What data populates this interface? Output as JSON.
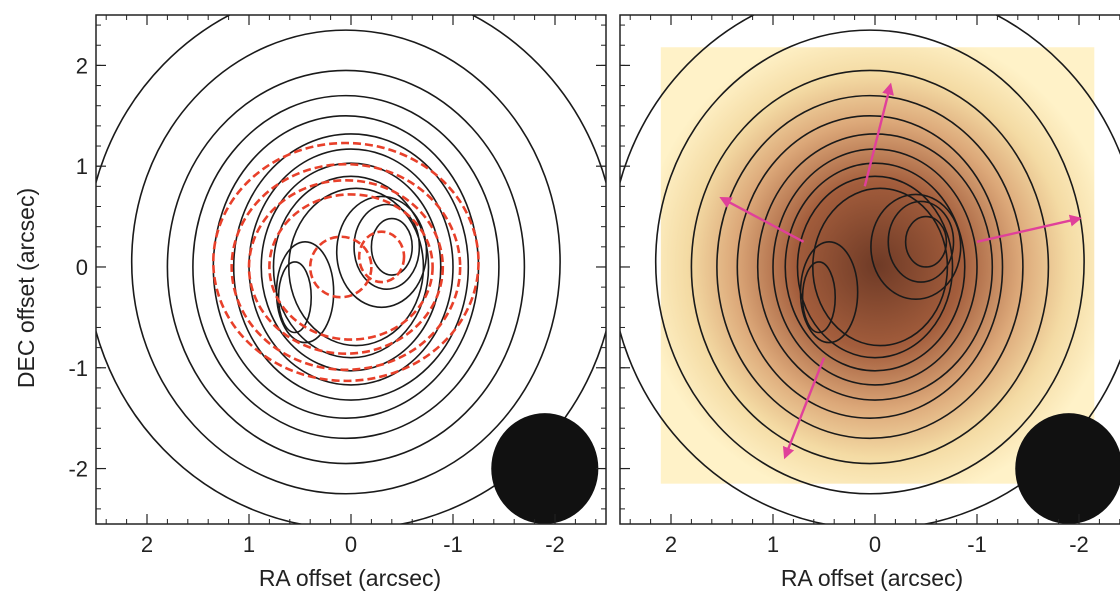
{
  "chart_data": [
    {
      "type": "contour",
      "panel": "left",
      "xlabel": "RA offset (arcsec)",
      "ylabel": "DEC offset (arcsec)",
      "xlim": [
        2.5,
        -2.5
      ],
      "ylim": [
        -2.55,
        2.5
      ],
      "x_ticks": [
        2,
        1,
        0,
        -1,
        -2
      ],
      "y_ticks": [
        2,
        1,
        0,
        -1,
        -2
      ],
      "x_tick_labels": [
        "2",
        "1",
        "0",
        "-1",
        "-2"
      ],
      "y_tick_labels": [
        "2",
        "1",
        "0",
        "-1",
        "-2"
      ],
      "series": [
        {
          "style": "solid",
          "color": "#1a1a1a",
          "contours": [
            {
              "cx": 0.0,
              "cy": 0.1,
              "rx": 2.6,
              "ry": 2.7
            },
            {
              "cx": 0.05,
              "cy": 0.05,
              "rx": 2.1,
              "ry": 2.3
            },
            {
              "cx": 0.05,
              "cy": 0.0,
              "rx": 1.75,
              "ry": 1.95
            },
            {
              "cx": 0.05,
              "cy": 0.0,
              "rx": 1.5,
              "ry": 1.7
            },
            {
              "cx": 0.05,
              "cy": 0.0,
              "rx": 1.3,
              "ry": 1.5
            },
            {
              "cx": 0.0,
              "cy": 0.0,
              "rx": 1.15,
              "ry": 1.32
            },
            {
              "cx": 0.0,
              "cy": 0.0,
              "rx": 1.0,
              "ry": 1.17
            },
            {
              "cx": 0.0,
              "cy": 0.0,
              "rx": 0.88,
              "ry": 1.03
            },
            {
              "cx": 0.0,
              "cy": 0.0,
              "rx": 0.76,
              "ry": 0.9
            },
            {
              "cx": -0.05,
              "cy": 0.0,
              "rx": 0.66,
              "ry": 0.78
            },
            {
              "cx": 0.55,
              "cy": -0.3,
              "rx": 0.16,
              "ry": 0.35
            },
            {
              "cx": 0.45,
              "cy": -0.25,
              "rx": 0.28,
              "ry": 0.5
            },
            {
              "cx": -0.4,
              "cy": 0.2,
              "rx": 0.2,
              "ry": 0.28
            },
            {
              "cx": -0.35,
              "cy": 0.2,
              "rx": 0.32,
              "ry": 0.42
            },
            {
              "cx": -0.3,
              "cy": 0.15,
              "rx": 0.44,
              "ry": 0.55
            }
          ]
        },
        {
          "style": "dashed",
          "color": "#e8402a",
          "contours": [
            {
              "cx": 0.05,
              "cy": 0.05,
              "rx": 1.3,
              "ry": 1.18
            },
            {
              "cx": 0.05,
              "cy": 0.0,
              "rx": 1.12,
              "ry": 1.02
            },
            {
              "cx": 0.05,
              "cy": 0.0,
              "rx": 0.95,
              "ry": 0.86
            },
            {
              "cx": 0.0,
              "cy": 0.0,
              "rx": 0.8,
              "ry": 0.72
            },
            {
              "cx": 0.1,
              "cy": 0.0,
              "rx": 0.3,
              "ry": 0.3
            },
            {
              "cx": -0.3,
              "cy": 0.1,
              "rx": 0.22,
              "ry": 0.25
            }
          ]
        }
      ],
      "beam": {
        "x": -1.9,
        "y": -2.0,
        "width": 1.05,
        "height": 1.1,
        "color": "#111111"
      }
    },
    {
      "type": "contour",
      "panel": "right",
      "xlabel": "RA offset (arcsec)",
      "ylabel": "",
      "xlim": [
        2.5,
        -2.5
      ],
      "ylim": [
        -2.55,
        2.5
      ],
      "x_ticks": [
        2,
        1,
        0,
        -1,
        -2
      ],
      "y_ticks": [
        2,
        1,
        0,
        -1,
        -2
      ],
      "x_tick_labels": [
        "2",
        "1",
        "0",
        "-1",
        "-2"
      ],
      "background_image": {
        "x0": 2.1,
        "x1": -2.15,
        "y0": -2.15,
        "y1": 2.18,
        "colormap": [
          "#fff3c8",
          "#f2d9a0",
          "#d89a6a",
          "#8a4a30"
        ]
      },
      "series": [
        {
          "style": "solid",
          "color": "#1a1a1a",
          "contours": [
            {
              "cx": 0.0,
              "cy": 0.1,
              "rx": 2.6,
              "ry": 2.7
            },
            {
              "cx": 0.05,
              "cy": 0.05,
              "rx": 2.1,
              "ry": 2.3
            },
            {
              "cx": 0.05,
              "cy": 0.0,
              "rx": 1.75,
              "ry": 1.95
            },
            {
              "cx": 0.05,
              "cy": 0.0,
              "rx": 1.5,
              "ry": 1.7
            },
            {
              "cx": 0.05,
              "cy": 0.0,
              "rx": 1.3,
              "ry": 1.5
            },
            {
              "cx": 0.0,
              "cy": 0.0,
              "rx": 1.15,
              "ry": 1.32
            },
            {
              "cx": 0.0,
              "cy": 0.0,
              "rx": 1.0,
              "ry": 1.17
            },
            {
              "cx": 0.0,
              "cy": 0.0,
              "rx": 0.88,
              "ry": 1.03
            },
            {
              "cx": 0.0,
              "cy": 0.0,
              "rx": 0.76,
              "ry": 0.9
            },
            {
              "cx": -0.05,
              "cy": 0.0,
              "rx": 0.66,
              "ry": 0.78
            },
            {
              "cx": 0.55,
              "cy": -0.3,
              "rx": 0.16,
              "ry": 0.35
            },
            {
              "cx": 0.45,
              "cy": -0.25,
              "rx": 0.28,
              "ry": 0.5
            },
            {
              "cx": -0.5,
              "cy": 0.25,
              "rx": 0.2,
              "ry": 0.25
            },
            {
              "cx": -0.45,
              "cy": 0.25,
              "rx": 0.32,
              "ry": 0.4
            },
            {
              "cx": -0.4,
              "cy": 0.2,
              "rx": 0.44,
              "ry": 0.52
            }
          ]
        }
      ],
      "arrows": [
        {
          "x0": 0.1,
          "y0": 0.8,
          "x1": -0.15,
          "y1": 1.8
        },
        {
          "x0": 0.7,
          "y0": 0.25,
          "x1": 1.5,
          "y1": 0.68
        },
        {
          "x0": -1.0,
          "y0": 0.25,
          "x1": -2.0,
          "y1": 0.48
        },
        {
          "x0": 0.5,
          "y0": -0.9,
          "x1": 0.88,
          "y1": -1.88
        }
      ],
      "arrow_color": "#e0409a",
      "beam": {
        "x": -1.9,
        "y": -2.0,
        "width": 1.05,
        "height": 1.1,
        "color": "#111111"
      }
    }
  ]
}
